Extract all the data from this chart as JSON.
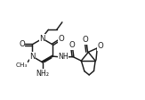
{
  "bg_color": "#ffffff",
  "line_color": "#1a1a1a",
  "line_width": 1.05,
  "figsize": [
    1.63,
    1.12
  ],
  "dpi": 100,
  "xlim": [
    0,
    10
  ],
  "ylim": [
    0,
    6.86
  ]
}
